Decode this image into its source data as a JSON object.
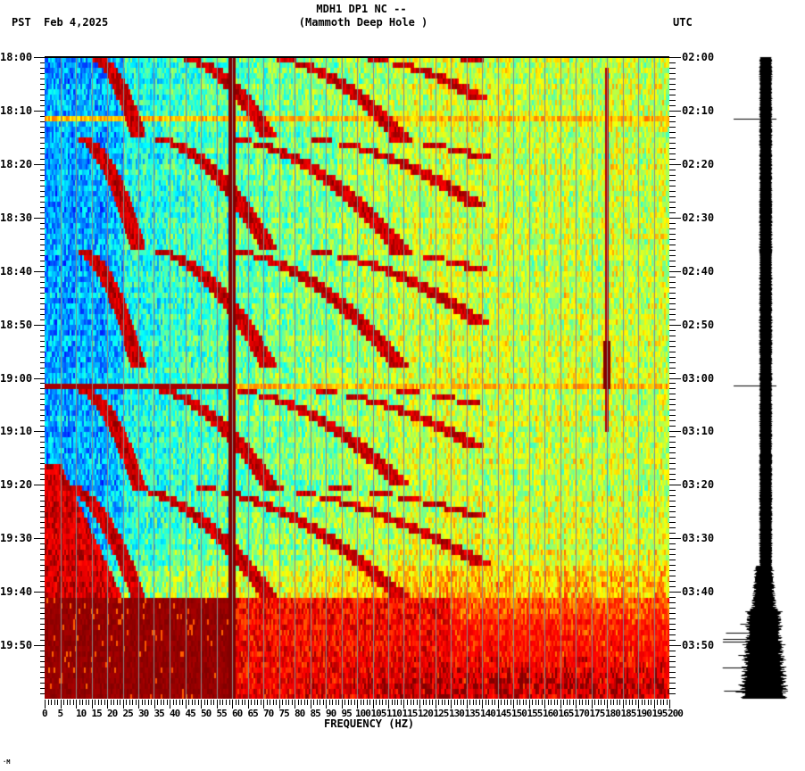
{
  "header": {
    "title_line1": "MDH1 DP1 NC --",
    "title_line2": "(Mammoth Deep Hole )",
    "left_timezone": "PST",
    "date": "Feb 4,2025",
    "right_timezone": "UTC"
  },
  "footer_mark": "·M",
  "chart_data": {
    "type": "heatmap",
    "title": "MDH1 DP1 NC -- (Mammoth Deep Hole )",
    "subtitle": "Feb 4,2025",
    "xlabel": "FREQUENCY (HZ)",
    "ylabel_left": "PST",
    "ylabel_right": "UTC",
    "xlim": [
      0,
      200
    ],
    "x_ticks": [
      0,
      5,
      10,
      15,
      20,
      25,
      30,
      35,
      40,
      45,
      50,
      55,
      60,
      65,
      70,
      75,
      80,
      85,
      90,
      95,
      100,
      105,
      110,
      115,
      120,
      125,
      130,
      135,
      140,
      145,
      150,
      155,
      160,
      165,
      170,
      175,
      180,
      185,
      190,
      195,
      200
    ],
    "x_tick_labels": [
      "0",
      "5",
      "10",
      "15",
      "20",
      "25",
      "30",
      "35",
      "40",
      "45",
      "50",
      "55",
      "60",
      "65",
      "70",
      "75",
      "80",
      "85",
      "90",
      "95",
      "100",
      "105",
      "110",
      "115",
      "120",
      "125",
      "130",
      "135",
      "140",
      "145",
      "150",
      "155",
      "160",
      "165",
      "170",
      "175",
      "180",
      "185",
      "190",
      "195",
      "200"
    ],
    "y_ticks_left": [
      "18:00",
      "18:10",
      "18:20",
      "18:30",
      "18:40",
      "18:50",
      "19:00",
      "19:10",
      "19:20",
      "19:30",
      "19:40",
      "19:50"
    ],
    "y_ticks_right": [
      "02:00",
      "02:10",
      "02:20",
      "02:30",
      "02:40",
      "02:50",
      "03:00",
      "03:10",
      "03:20",
      "03:30",
      "03:40",
      "03:50"
    ],
    "time_range_minutes": 120,
    "minor_tick_minutes": 1,
    "grid": "vertical lines every 5 Hz",
    "colormap": "jet (blue low power -> dark red high power)",
    "colors": {
      "low": "#0060ff",
      "mid_low": "#00e0ff",
      "mid": "#80ff80",
      "mid_high": "#ffff00",
      "high": "#ff4000",
      "max": "#800000",
      "gridline": "#8a8a8a"
    },
    "features": {
      "persistent_lines_hz": [
        60,
        180
      ],
      "line_60hz_color": "#800000",
      "line_180hz_color": "#800000",
      "broadband_events_min": [
        11.5,
        61.5
      ],
      "sweeping_harmonic_sets": [
        {
          "start_min": 0,
          "end_min": 15,
          "fundamental_hz_start": 30,
          "fundamental_hz_end": 60
        },
        {
          "start_min": 15,
          "end_min": 36,
          "fundamental_hz_start": 20,
          "fundamental_hz_end": 60
        },
        {
          "start_min": 36,
          "end_min": 58,
          "fundamental_hz_start": 20,
          "fundamental_hz_end": 60
        },
        {
          "start_min": 62,
          "end_min": 80,
          "fundamental_hz_start": 20,
          "fundamental_hz_end": 60
        },
        {
          "start_min": 80,
          "end_min": 101,
          "fundamental_hz_start": 10,
          "fundamental_hz_end": 60
        }
      ],
      "low_freq_energy_onset_min": 76,
      "broadband_saturation_onset_min": 101,
      "high_freq_band_increase_onset_min": 105
    },
    "seismogram": {
      "spikes_min": [
        11.5,
        61.5
      ],
      "amplitude_increase_min": [
        95,
        120
      ]
    }
  }
}
